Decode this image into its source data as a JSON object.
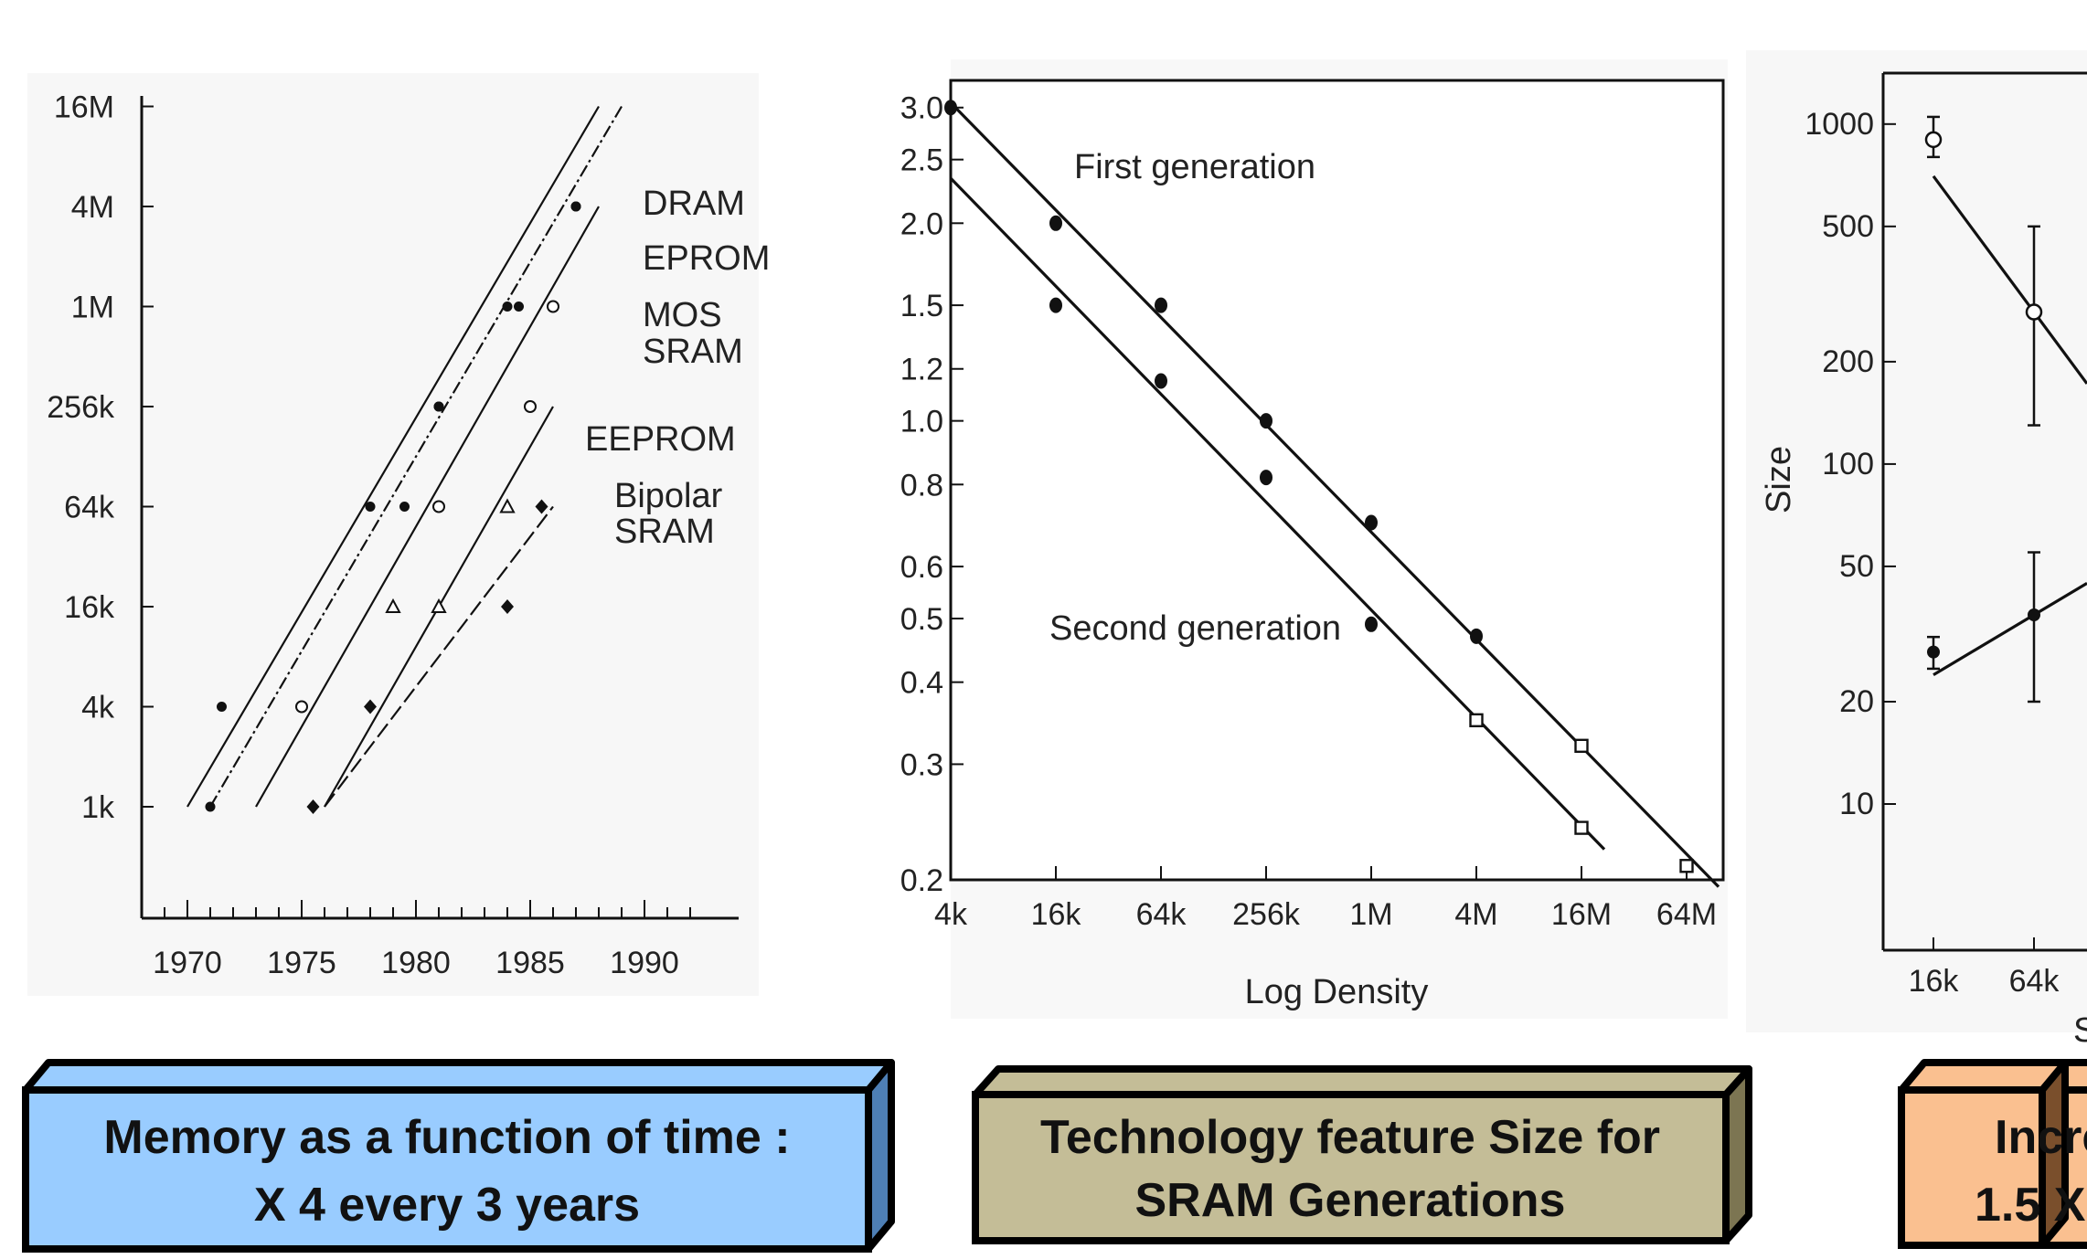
{
  "chart_data": [
    {
      "type": "line",
      "title": "",
      "caption": [
        "Memory as a function of time :",
        "X 4 every 3 years"
      ],
      "caption_color": "#99CCFF",
      "xlabel": "",
      "ylabel": "",
      "y_scale": "log",
      "x_ticks": [
        "1970",
        "1975",
        "1980",
        "1985",
        "1990"
      ],
      "y_ticks": [
        "1k",
        "4k",
        "16k",
        "64k",
        "256k",
        "1M",
        "4M",
        "16M"
      ],
      "x_range": [
        1968,
        1992
      ],
      "series_labels": [
        "DRAM",
        "EPROM",
        "MOS",
        "SRAM",
        "EEPROM",
        "Bipolar",
        "SRAM"
      ],
      "series": [
        {
          "name": "DRAM",
          "points": [
            [
              1971.5,
              "4k"
            ],
            [
              1978,
              "64k"
            ],
            [
              1981,
              "256k"
            ],
            [
              1984,
              "1M"
            ],
            [
              1987,
              "4M"
            ]
          ],
          "trend": [
            [
              1970,
              "1k"
            ],
            [
              1988,
              "16M"
            ]
          ]
        },
        {
          "name": "EPROM",
          "points": [
            [
              1971,
              "1k"
            ],
            [
              1979.5,
              "64k"
            ],
            [
              1981,
              "256k"
            ],
            [
              1984.5,
              "1M"
            ],
            [
              1987,
              "4M"
            ]
          ],
          "trend": [
            [
              1971,
              "1k"
            ],
            [
              1989,
              "16M"
            ]
          ]
        },
        {
          "name": "MOS SRAM",
          "points": [
            [
              1975,
              "4k"
            ],
            [
              1981,
              "64k"
            ],
            [
              1985,
              "256k"
            ],
            [
              1986,
              "1M"
            ]
          ],
          "trend": [
            [
              1973,
              "1k"
            ],
            [
              1988,
              "4M"
            ]
          ]
        },
        {
          "name": "EEPROM",
          "points": [
            [
              1979,
              "16k"
            ],
            [
              1981,
              "16k"
            ],
            [
              1984,
              "64k"
            ]
          ],
          "trend": [
            [
              1976,
              "1k"
            ],
            [
              1986,
              "256k"
            ]
          ]
        },
        {
          "name": "Bipolar SRAM",
          "points": [
            [
              1975.5,
              "1k"
            ],
            [
              1978,
              "4k"
            ],
            [
              1984,
              "16k"
            ],
            [
              1985.5,
              "64k"
            ]
          ],
          "trend": [
            [
              1976,
              "1k"
            ],
            [
              1986,
              "64k"
            ]
          ]
        }
      ]
    },
    {
      "type": "line",
      "title": "",
      "caption": [
        "Technology feature Size for",
        "SRAM Generations"
      ],
      "caption_color": "#C4BD97",
      "xlabel": "Log Density",
      "ylabel": "",
      "y_scale": "log",
      "ylim": [
        0.2,
        3.3
      ],
      "x_ticks": [
        "4k",
        "16k",
        "64k",
        "256k",
        "1M",
        "4M",
        "16M",
        "64M"
      ],
      "y_ticks": [
        "0.2",
        "0.3",
        "0.4",
        "0.5",
        "0.6",
        "0.8",
        "1.0",
        "1.2",
        "1.5",
        "2.0",
        "2.5",
        "3.0"
      ],
      "series": [
        {
          "name": "First generation",
          "x": [
            "4k",
            "16k",
            "64k",
            "256k",
            "1M",
            "4M",
            "16M",
            "64M"
          ],
          "y": [
            3.0,
            2.0,
            1.5,
            1.0,
            0.7,
            0.47,
            0.32,
            0.21
          ],
          "markers": [
            "filled",
            "filled",
            "filled",
            "filled",
            "filled",
            "filled",
            "open",
            "open"
          ]
        },
        {
          "name": "Second generation",
          "x": [
            "16k",
            "64k",
            "256k",
            "1M",
            "4M",
            "16M"
          ],
          "y": [
            1.5,
            1.15,
            0.82,
            0.49,
            0.35,
            0.24
          ],
          "markers": [
            "filled",
            "filled",
            "filled",
            "filled",
            "open",
            "open"
          ]
        }
      ]
    },
    {
      "type": "scatter",
      "title": "",
      "caption": [
        "Incre",
        "1.5 X"
      ],
      "caption_color": "#FAC090",
      "xlabel": "S",
      "ylabel": "Size",
      "y_scale": "log",
      "x_ticks": [
        "16k",
        "64k"
      ],
      "y_ticks": [
        "10",
        "20",
        "50",
        "100",
        "200",
        "500",
        "1000"
      ],
      "series": [
        {
          "name": "",
          "x": [
            "16k",
            "64k"
          ],
          "y": [
            900,
            280
          ],
          "err_low": [
            800,
            130
          ],
          "err_high": [
            1050,
            500
          ],
          "marker": "open"
        },
        {
          "name": "",
          "x": [
            "16k",
            "64k"
          ],
          "y": [
            28,
            36
          ],
          "err_low": [
            25,
            20
          ],
          "err_high": [
            31,
            55
          ],
          "marker": "filled"
        }
      ]
    }
  ]
}
